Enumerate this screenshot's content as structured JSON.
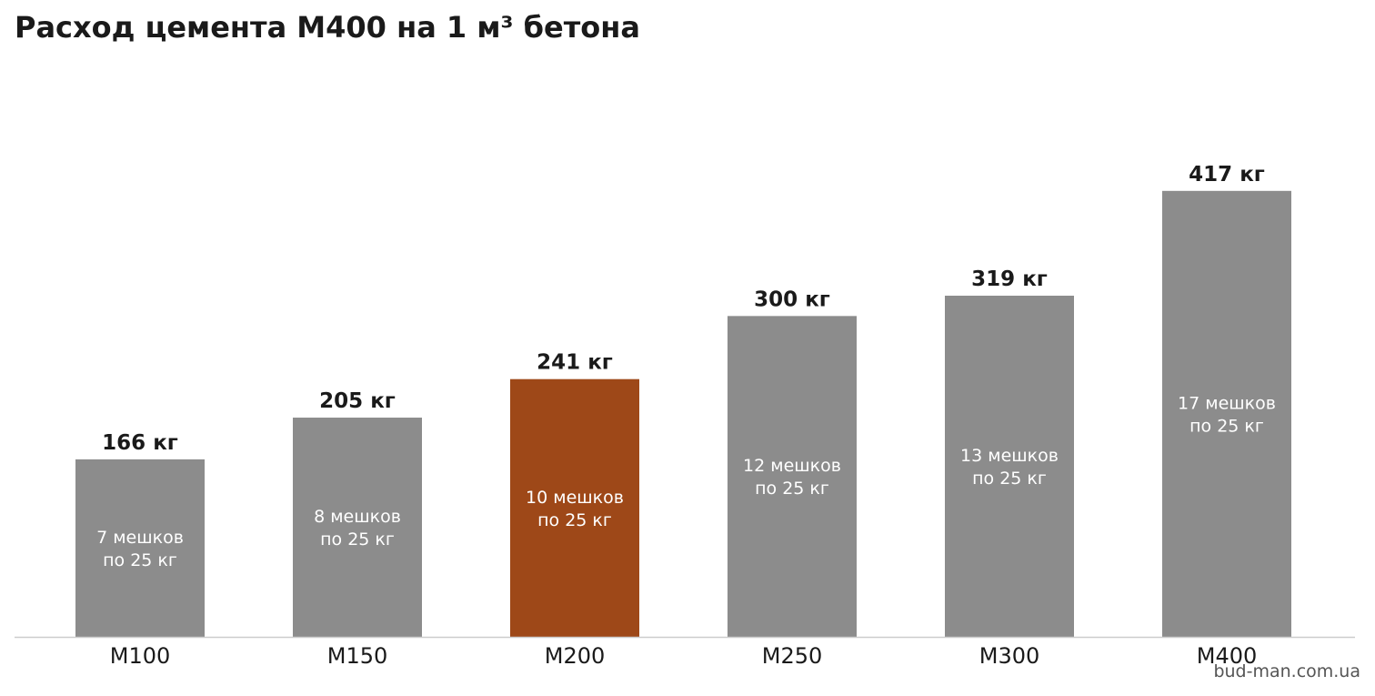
{
  "chart_data": {
    "type": "bar",
    "title": "Расход цемента М400 на 1 м³ бетона",
    "categories": [
      "М100",
      "М150",
      "М200",
      "М250",
      "М300",
      "М400"
    ],
    "values": [
      166,
      205,
      241,
      300,
      319,
      417
    ],
    "value_labels": [
      "166 кг",
      "205 кг",
      "241 кг",
      "300 кг",
      "319 кг",
      "417 кг"
    ],
    "inner_labels": [
      [
        "7 мешков",
        "по 25 кг"
      ],
      [
        "8 мешков",
        "по 25 кг"
      ],
      [
        "10 мешков",
        "по 25 кг"
      ],
      [
        "12 мешков",
        "по 25 кг"
      ],
      [
        "13 мешков",
        "по 25 кг"
      ],
      [
        "17 мешков",
        "по 25 кг"
      ]
    ],
    "highlight_index": 2,
    "xlabel": "",
    "ylabel": "",
    "ylim": [
      0,
      490
    ],
    "grid": false,
    "legend": "none"
  },
  "colors": {
    "bar": "#8c8c8c",
    "highlight": "#9e4818",
    "text": "#1a1a1a",
    "inner_text": "#ffffff",
    "axis": "#cccccc"
  },
  "watermark": "bud-man.com.ua"
}
